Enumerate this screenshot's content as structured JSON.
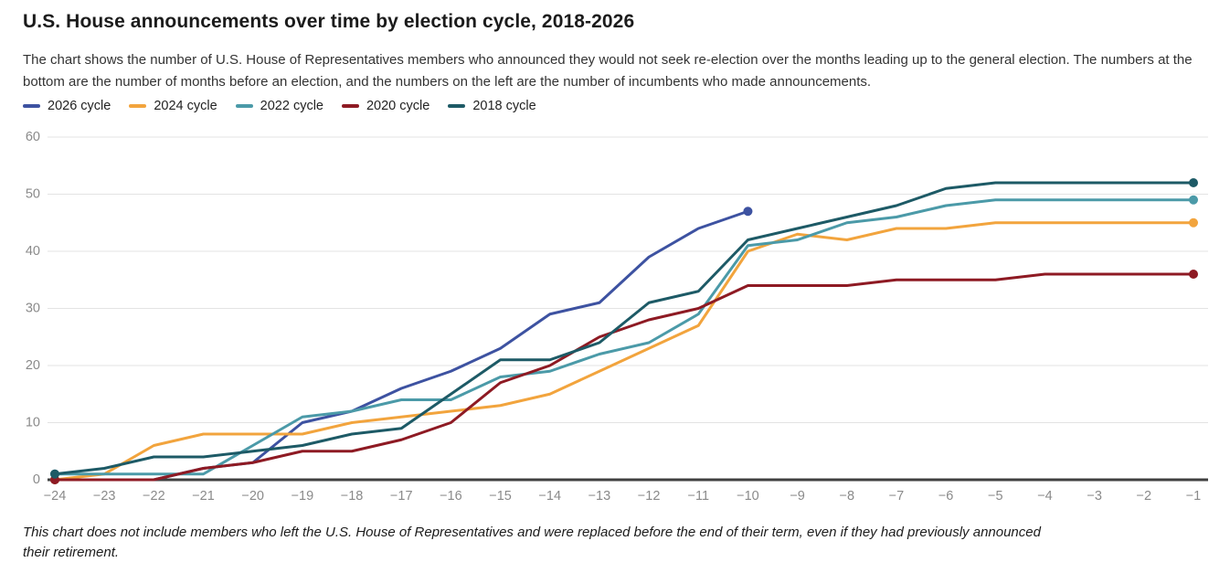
{
  "title": "U.S. House announcements over time by election cycle, 2018-2026",
  "subtitle": "The chart shows the number of U.S. House of Representatives members who announced they would not seek re-election over the months leading up to the general election. The numbers at the bottom are the number of months before an election, and the numbers on the left are the number of incumbents who made announcements.",
  "footnote": "This chart does not include members who left the U.S. House of Representatives and were replaced before the end of their term, even if they had previously announced their retirement.",
  "colors": {
    "grid": "#e3e3e3",
    "axis": "#404040",
    "tick_label": "#8a8a8a",
    "background": "#ffffff"
  },
  "chart_data": {
    "type": "line",
    "title": "U.S. House announcements over time by election cycle, 2018-2026",
    "xlabel": "months before election",
    "ylabel": "incumbents who made announcements",
    "ylim": [
      0,
      60
    ],
    "yticks": [
      0,
      10,
      20,
      30,
      40,
      50,
      60
    ],
    "ytick_labels": [
      "0",
      "10",
      "20",
      "30",
      "40",
      "50",
      "60"
    ],
    "grid": "horizontal",
    "legend_position": "top-left",
    "x": [
      -24,
      -23,
      -22,
      -21,
      -20,
      -19,
      -18,
      -17,
      -16,
      -15,
      -14,
      -13,
      -12,
      -11,
      -10,
      -9,
      -8,
      -7,
      -6,
      -5,
      -4,
      -3,
      -2,
      -1
    ],
    "xtick_labels": [
      "−24",
      "−23",
      "−22",
      "−21",
      "−20",
      "−19",
      "−18",
      "−17",
      "−16",
      "−15",
      "−14",
      "−13",
      "−12",
      "−11",
      "−10",
      "−9",
      "−8",
      "−7",
      "−6",
      "−5",
      "−4",
      "−3",
      "−2",
      "−1"
    ],
    "series": [
      {
        "name": "2026 cycle",
        "color": "#3d52a1",
        "values": [
          0,
          0,
          0,
          2,
          3,
          10,
          12,
          16,
          19,
          23,
          29,
          31,
          39,
          44,
          47
        ]
      },
      {
        "name": "2024 cycle",
        "color": "#f2a43d",
        "values": [
          0,
          1,
          6,
          8,
          8,
          8,
          10,
          11,
          12,
          13,
          15,
          19,
          23,
          27,
          40,
          43,
          42,
          44,
          44,
          45,
          45,
          45,
          45,
          45
        ]
      },
      {
        "name": "2022 cycle",
        "color": "#4b9aa8",
        "values": [
          1,
          1,
          1,
          1,
          6,
          11,
          12,
          14,
          14,
          18,
          19,
          22,
          24,
          29,
          41,
          42,
          45,
          46,
          48,
          49,
          49,
          49,
          49,
          49
        ]
      },
      {
        "name": "2020 cycle",
        "color": "#8e1a23",
        "values": [
          0,
          0,
          0,
          2,
          3,
          5,
          5,
          7,
          10,
          17,
          20,
          25,
          28,
          30,
          34,
          34,
          34,
          35,
          35,
          35,
          36,
          36,
          36,
          36
        ]
      },
      {
        "name": "2018 cycle",
        "color": "#1d5a66",
        "values": [
          1,
          2,
          4,
          4,
          5,
          6,
          8,
          9,
          15,
          21,
          21,
          24,
          31,
          33,
          42,
          44,
          46,
          48,
          51,
          52,
          52,
          52,
          52,
          52
        ]
      }
    ]
  }
}
